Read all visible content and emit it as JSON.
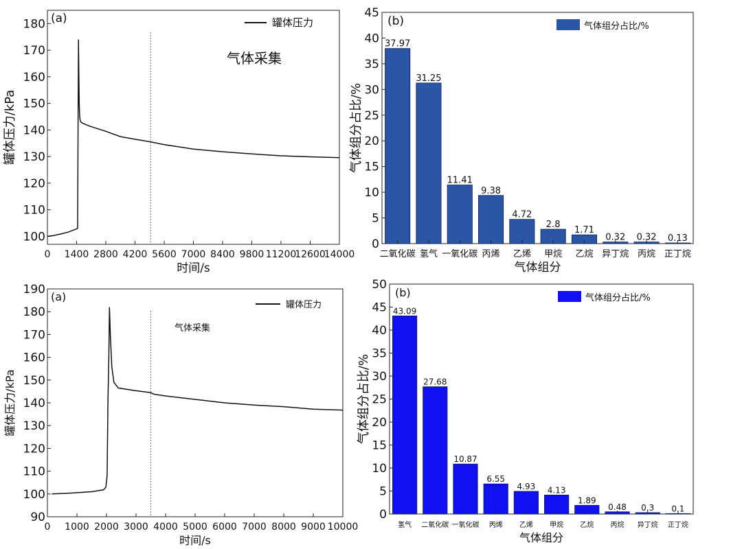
{
  "chart_data": [
    {
      "type": "line",
      "panel_label": "(a)",
      "xlabel": "时间/s",
      "ylabel": "罐体压力/kPa",
      "xlim": [
        0,
        14000
      ],
      "ylim": [
        97,
        185
      ],
      "xticks": [
        0,
        1400,
        2800,
        4200,
        5600,
        7000,
        8400,
        9800,
        11200,
        12600,
        14000
      ],
      "xtick_labels": [
        "0",
        "1400",
        "2800",
        "4200",
        "5600",
        "7000",
        "8400",
        "9800",
        "11200",
        "12600",
        "14000"
      ],
      "yticks": [
        100,
        110,
        120,
        130,
        140,
        150,
        160,
        170,
        180
      ],
      "yticks_labels": [
        "100",
        "110",
        "120",
        "130",
        "140",
        "150",
        "160",
        "170",
        "180"
      ],
      "annotation": "气体采集",
      "vline_x": 4950,
      "legend_position": "top-right",
      "series": [
        {
          "name": "罐体压力",
          "x": [
            0,
            300,
            700,
            1000,
            1300,
            1450,
            1470,
            1490,
            1510,
            1525,
            1540,
            1560,
            1600,
            1700,
            2000,
            2800,
            3500,
            4200,
            4950,
            5600,
            7000,
            8400,
            9800,
            11200,
            12600,
            14000
          ],
          "y": [
            100,
            100.3,
            101,
            101.6,
            102.5,
            103,
            140,
            174,
            160,
            150,
            146,
            144,
            143,
            142.5,
            141.5,
            139.5,
            137.5,
            136.5,
            135.5,
            134.5,
            132.8,
            131.8,
            131,
            130.3,
            129.9,
            129.6
          ]
        }
      ]
    },
    {
      "type": "bar",
      "panel_label": "(b)",
      "xlabel": "气体组分",
      "ylabel": "气体组分占比/%",
      "ylim": [
        0,
        45
      ],
      "yticks": [
        0,
        5,
        10,
        15,
        20,
        25,
        30,
        35,
        40,
        45
      ],
      "yticks_labels": [
        "0",
        "5",
        "10",
        "15",
        "20",
        "25",
        "30",
        "35",
        "40",
        "45"
      ],
      "color": "#2b55a5",
      "legend_position": "top-right",
      "categories": [
        "二氧化碳",
        "氢气",
        "一氧化碳",
        "丙烯",
        "乙烯",
        "甲烷",
        "乙烷",
        "异丁烷",
        "丙烷",
        "正丁烷"
      ],
      "series": [
        {
          "name": "气体组分占比/%",
          "values": [
            37.97,
            31.25,
            11.41,
            9.38,
            4.72,
            2.8,
            1.71,
            0.32,
            0.32,
            0.13
          ]
        }
      ],
      "data_labels": [
        "37.97",
        "31.25",
        "11.41",
        "9.38",
        "4.72",
        "2.8",
        "1.71",
        "0.32",
        "0.32",
        "0.13"
      ]
    },
    {
      "type": "line",
      "panel_label": "(a)",
      "xlabel": "时间/s",
      "ylabel": "罐体压力/kPa",
      "xlim": [
        0,
        10000
      ],
      "ylim": [
        90,
        190
      ],
      "xticks": [
        0,
        1000,
        2000,
        3000,
        4000,
        5000,
        6000,
        7000,
        8000,
        9000,
        10000
      ],
      "xtick_labels": [
        "0",
        "1000",
        "2000",
        "3000",
        "4000",
        "5000",
        "6000",
        "7000",
        "8000",
        "9000",
        "10000"
      ],
      "yticks": [
        90,
        100,
        110,
        120,
        130,
        140,
        150,
        160,
        170,
        180,
        190
      ],
      "yticks_labels": [
        "90",
        "100",
        "110",
        "120",
        "130",
        "140",
        "150",
        "160",
        "170",
        "180",
        "190"
      ],
      "annotation": "气体采集",
      "vline_x": 3500,
      "legend_position": "top-right",
      "series": [
        {
          "name": "罐体压力",
          "x": [
            150,
            800,
            1500,
            1900,
            1980,
            2020,
            2050,
            2080,
            2100,
            2130,
            2180,
            2250,
            2400,
            3000,
            3500,
            3600,
            4000,
            5000,
            6000,
            7000,
            8000,
            9000,
            10000
          ],
          "y": [
            100,
            100.4,
            101,
            101.8,
            103,
            108,
            140,
            160,
            182,
            170,
            156,
            149,
            146.5,
            145.3,
            144.5,
            143.8,
            143,
            141.5,
            140,
            139,
            138.3,
            137.2,
            136.8
          ]
        }
      ]
    },
    {
      "type": "bar",
      "panel_label": "(b)",
      "xlabel": "气体组分",
      "ylabel": "气体组分占比/%",
      "ylim": [
        0,
        50
      ],
      "yticks": [
        0,
        5,
        10,
        15,
        20,
        25,
        30,
        35,
        40,
        45,
        50
      ],
      "yticks_labels": [
        "0",
        "5",
        "10",
        "15",
        "20",
        "25",
        "30",
        "35",
        "40",
        "45",
        "50"
      ],
      "color": "#1010f0",
      "legend_position": "top-right",
      "categories": [
        "氢气",
        "二氧化碳",
        "一氧化碳",
        "丙烯",
        "乙烯",
        "甲烷",
        "乙烷",
        "丙烷",
        "异丁烷",
        "正丁烷"
      ],
      "series": [
        {
          "name": "气体组分占比/%",
          "values": [
            43.09,
            27.68,
            10.87,
            6.55,
            4.93,
            4.13,
            1.89,
            0.48,
            0.3,
            0.1
          ]
        }
      ],
      "data_labels": [
        "43.09",
        "27.68",
        "10.87",
        "6.55",
        "4.93",
        "4.13",
        "1.89",
        "0.48",
        "0.3",
        "0.1"
      ]
    }
  ]
}
